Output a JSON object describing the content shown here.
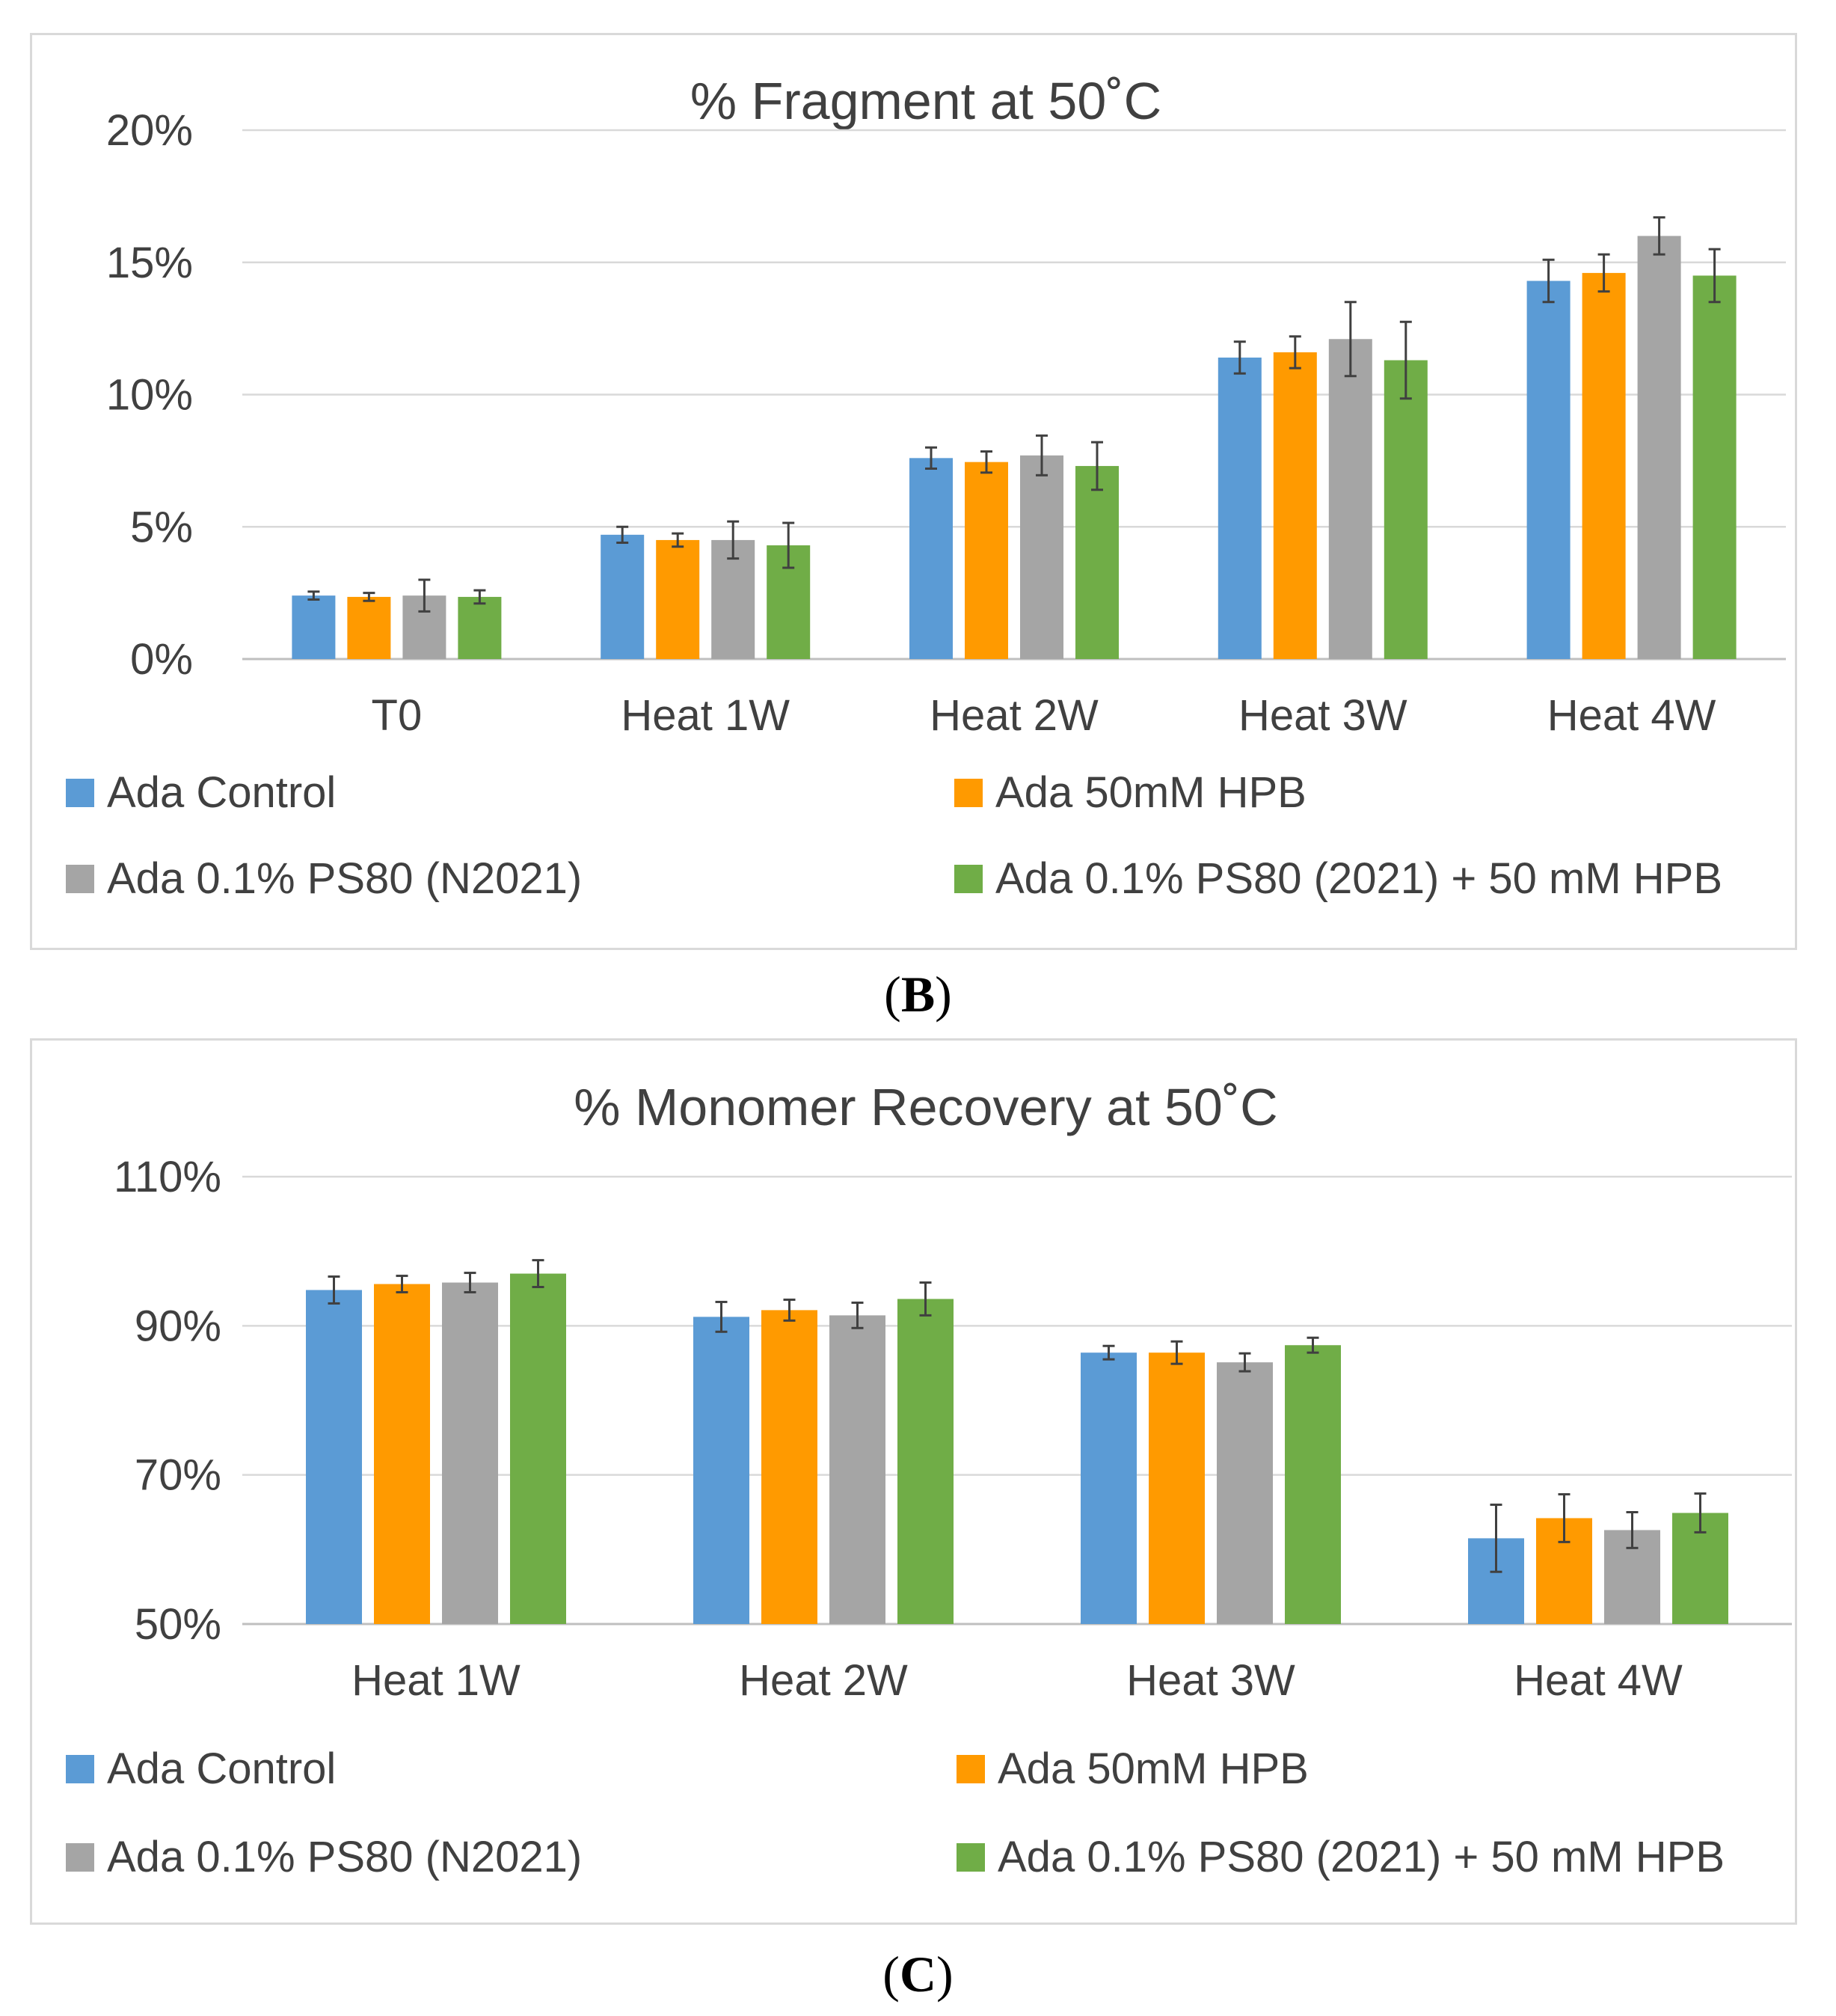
{
  "legend_series": [
    {
      "name": "Ada Control",
      "color": "#5b9bd5"
    },
    {
      "name": "Ada 50mM HPB",
      "color": "#ff9a00"
    },
    {
      "name": "Ada 0.1% PS80 (N2021)",
      "color": "#a5a5a5"
    },
    {
      "name": "Ada 0.1% PS80 (2021) + 50 mM HPB",
      "color": "#70ad47"
    }
  ],
  "captions": {
    "b": {
      "open": "(",
      "label": "B",
      "close": ")"
    },
    "c": {
      "open": "(",
      "label": "C",
      "close": ")"
    }
  },
  "chart_data": [
    {
      "type": "bar",
      "title": "% Fragment at 50˚C",
      "categories": [
        "T0",
        "Heat 1W",
        "Heat 2W",
        "Heat 3W",
        "Heat 4W"
      ],
      "ylim": [
        0,
        20
      ],
      "yticks": [
        0,
        5,
        10,
        15,
        20
      ],
      "ytick_labels": [
        "0%",
        "5%",
        "10%",
        "15%",
        "20%"
      ],
      "grid": true,
      "legend_position": "bottom",
      "series": [
        {
          "name": "Ada Control",
          "values": [
            2.4,
            4.7,
            7.6,
            11.4,
            14.3
          ],
          "errors": [
            0.15,
            0.3,
            0.4,
            0.6,
            0.8
          ]
        },
        {
          "name": "Ada 50mM HPB",
          "values": [
            2.35,
            4.5,
            7.45,
            11.6,
            14.6
          ],
          "errors": [
            0.15,
            0.25,
            0.4,
            0.6,
            0.7
          ]
        },
        {
          "name": "Ada 0.1% PS80 (N2021)",
          "values": [
            2.4,
            4.5,
            7.7,
            12.1,
            16.0
          ],
          "errors": [
            0.6,
            0.7,
            0.75,
            1.4,
            0.7
          ]
        },
        {
          "name": "Ada 0.1% PS80 (2021) + 50 mM HPB",
          "values": [
            2.35,
            4.3,
            7.3,
            11.3,
            14.5
          ],
          "errors": [
            0.25,
            0.85,
            0.9,
            1.45,
            1.0
          ]
        }
      ]
    },
    {
      "type": "bar",
      "title": "% Monomer Recovery at 50˚C",
      "categories": [
        "Heat 1W",
        "Heat 2W",
        "Heat 3W",
        "Heat 4W"
      ],
      "ylim": [
        50,
        110
      ],
      "yticks": [
        50,
        70,
        90,
        110
      ],
      "ytick_labels": [
        "50%",
        "70%",
        "90%",
        "110%"
      ],
      "grid": true,
      "legend_position": "bottom",
      "series": [
        {
          "name": "Ada Control",
          "values": [
            94.8,
            91.2,
            86.4,
            61.5
          ],
          "errors": [
            1.8,
            2.0,
            0.9,
            4.5
          ]
        },
        {
          "name": "Ada 50mM HPB",
          "values": [
            95.6,
            92.1,
            86.4,
            64.2
          ],
          "errors": [
            1.1,
            1.4,
            1.5,
            3.2
          ]
        },
        {
          "name": "Ada 0.1% PS80 (N2021)",
          "values": [
            95.8,
            91.4,
            85.1,
            62.6
          ],
          "errors": [
            1.3,
            1.7,
            1.2,
            2.4
          ]
        },
        {
          "name": "Ada 0.1% PS80 (2021) + 50 mM HPB",
          "values": [
            97.0,
            93.6,
            87.4,
            64.9
          ],
          "errors": [
            1.8,
            2.2,
            1.0,
            2.6
          ]
        }
      ]
    }
  ]
}
